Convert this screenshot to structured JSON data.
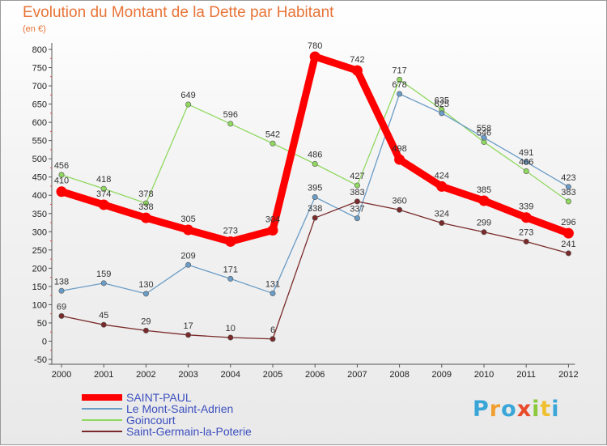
{
  "chart_data": {
    "type": "line",
    "title": "Evolution du Montant de la Dette par Habitant",
    "subtitle": "(en €)",
    "x": [
      "2000",
      "2001",
      "2002",
      "2003",
      "2004",
      "2005",
      "2006",
      "2007",
      "2008",
      "2009",
      "2010",
      "2011",
      "2012"
    ],
    "ylim": [
      -50,
      800
    ],
    "yticks": [
      -50,
      0,
      50,
      100,
      150,
      200,
      250,
      300,
      350,
      400,
      450,
      500,
      550,
      600,
      650,
      700,
      750,
      800
    ],
    "grid": false,
    "legend_position": "bottom-left",
    "series": [
      {
        "name": "SAINT-PAUL",
        "color": "#ff0000",
        "values": [
          410,
          374,
          338,
          305,
          273,
          304,
          780,
          742,
          498,
          424,
          385,
          339,
          296
        ]
      },
      {
        "name": "Le Mont-Saint-Adrien",
        "color": "#6b9cc6",
        "values": [
          138,
          159,
          130,
          209,
          171,
          131,
          395,
          337,
          678,
          625,
          558,
          491,
          423
        ]
      },
      {
        "name": "Goincourt",
        "color": "#90d860",
        "values": [
          456,
          418,
          378,
          649,
          596,
          542,
          486,
          427,
          717,
          635,
          546,
          466,
          383
        ]
      },
      {
        "name": "Saint-Germain-la-Poterie",
        "color": "#7a2a2a",
        "values": [
          69,
          45,
          29,
          17,
          10,
          6,
          338,
          383,
          360,
          324,
          299,
          273,
          241
        ]
      }
    ]
  },
  "brand": {
    "logo_letters": [
      "P",
      "r",
      "o",
      "x",
      "i",
      "t",
      "i"
    ]
  }
}
